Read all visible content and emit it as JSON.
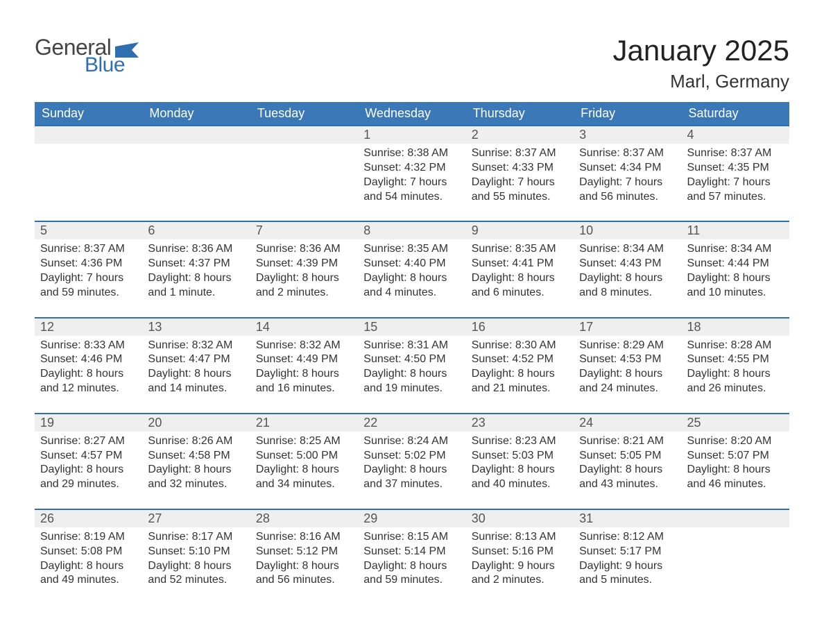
{
  "logo": {
    "text_top": "General",
    "text_bottom": "Blue",
    "color_top": "#444444",
    "color_bottom": "#2f6fb0",
    "flag_color": "#2f6fb0"
  },
  "header": {
    "month_title": "January 2025",
    "location": "Marl, Germany"
  },
  "styling": {
    "header_row_bg": "#3b78b8",
    "header_row_text": "#ffffff",
    "daynum_bg": "#efefef",
    "daynum_border_top": "#2f6fb0",
    "body_text_color": "#333333",
    "page_bg": "#ffffff",
    "title_fontsize": 42,
    "location_fontsize": 26,
    "weekday_fontsize": 18,
    "daynum_fontsize": 18,
    "body_fontsize": 16
  },
  "calendar": {
    "weekdays": [
      "Sunday",
      "Monday",
      "Tuesday",
      "Wednesday",
      "Thursday",
      "Friday",
      "Saturday"
    ],
    "weeks": [
      {
        "days": [
          {
            "num": "",
            "sunrise": "",
            "sunset": "",
            "daylight1": "",
            "daylight2": ""
          },
          {
            "num": "",
            "sunrise": "",
            "sunset": "",
            "daylight1": "",
            "daylight2": ""
          },
          {
            "num": "",
            "sunrise": "",
            "sunset": "",
            "daylight1": "",
            "daylight2": ""
          },
          {
            "num": "1",
            "sunrise": "Sunrise: 8:38 AM",
            "sunset": "Sunset: 4:32 PM",
            "daylight1": "Daylight: 7 hours",
            "daylight2": "and 54 minutes."
          },
          {
            "num": "2",
            "sunrise": "Sunrise: 8:37 AM",
            "sunset": "Sunset: 4:33 PM",
            "daylight1": "Daylight: 7 hours",
            "daylight2": "and 55 minutes."
          },
          {
            "num": "3",
            "sunrise": "Sunrise: 8:37 AM",
            "sunset": "Sunset: 4:34 PM",
            "daylight1": "Daylight: 7 hours",
            "daylight2": "and 56 minutes."
          },
          {
            "num": "4",
            "sunrise": "Sunrise: 8:37 AM",
            "sunset": "Sunset: 4:35 PM",
            "daylight1": "Daylight: 7 hours",
            "daylight2": "and 57 minutes."
          }
        ]
      },
      {
        "days": [
          {
            "num": "5",
            "sunrise": "Sunrise: 8:37 AM",
            "sunset": "Sunset: 4:36 PM",
            "daylight1": "Daylight: 7 hours",
            "daylight2": "and 59 minutes."
          },
          {
            "num": "6",
            "sunrise": "Sunrise: 8:36 AM",
            "sunset": "Sunset: 4:37 PM",
            "daylight1": "Daylight: 8 hours",
            "daylight2": "and 1 minute."
          },
          {
            "num": "7",
            "sunrise": "Sunrise: 8:36 AM",
            "sunset": "Sunset: 4:39 PM",
            "daylight1": "Daylight: 8 hours",
            "daylight2": "and 2 minutes."
          },
          {
            "num": "8",
            "sunrise": "Sunrise: 8:35 AM",
            "sunset": "Sunset: 4:40 PM",
            "daylight1": "Daylight: 8 hours",
            "daylight2": "and 4 minutes."
          },
          {
            "num": "9",
            "sunrise": "Sunrise: 8:35 AM",
            "sunset": "Sunset: 4:41 PM",
            "daylight1": "Daylight: 8 hours",
            "daylight2": "and 6 minutes."
          },
          {
            "num": "10",
            "sunrise": "Sunrise: 8:34 AM",
            "sunset": "Sunset: 4:43 PM",
            "daylight1": "Daylight: 8 hours",
            "daylight2": "and 8 minutes."
          },
          {
            "num": "11",
            "sunrise": "Sunrise: 8:34 AM",
            "sunset": "Sunset: 4:44 PM",
            "daylight1": "Daylight: 8 hours",
            "daylight2": "and 10 minutes."
          }
        ]
      },
      {
        "days": [
          {
            "num": "12",
            "sunrise": "Sunrise: 8:33 AM",
            "sunset": "Sunset: 4:46 PM",
            "daylight1": "Daylight: 8 hours",
            "daylight2": "and 12 minutes."
          },
          {
            "num": "13",
            "sunrise": "Sunrise: 8:32 AM",
            "sunset": "Sunset: 4:47 PM",
            "daylight1": "Daylight: 8 hours",
            "daylight2": "and 14 minutes."
          },
          {
            "num": "14",
            "sunrise": "Sunrise: 8:32 AM",
            "sunset": "Sunset: 4:49 PM",
            "daylight1": "Daylight: 8 hours",
            "daylight2": "and 16 minutes."
          },
          {
            "num": "15",
            "sunrise": "Sunrise: 8:31 AM",
            "sunset": "Sunset: 4:50 PM",
            "daylight1": "Daylight: 8 hours",
            "daylight2": "and 19 minutes."
          },
          {
            "num": "16",
            "sunrise": "Sunrise: 8:30 AM",
            "sunset": "Sunset: 4:52 PM",
            "daylight1": "Daylight: 8 hours",
            "daylight2": "and 21 minutes."
          },
          {
            "num": "17",
            "sunrise": "Sunrise: 8:29 AM",
            "sunset": "Sunset: 4:53 PM",
            "daylight1": "Daylight: 8 hours",
            "daylight2": "and 24 minutes."
          },
          {
            "num": "18",
            "sunrise": "Sunrise: 8:28 AM",
            "sunset": "Sunset: 4:55 PM",
            "daylight1": "Daylight: 8 hours",
            "daylight2": "and 26 minutes."
          }
        ]
      },
      {
        "days": [
          {
            "num": "19",
            "sunrise": "Sunrise: 8:27 AM",
            "sunset": "Sunset: 4:57 PM",
            "daylight1": "Daylight: 8 hours",
            "daylight2": "and 29 minutes."
          },
          {
            "num": "20",
            "sunrise": "Sunrise: 8:26 AM",
            "sunset": "Sunset: 4:58 PM",
            "daylight1": "Daylight: 8 hours",
            "daylight2": "and 32 minutes."
          },
          {
            "num": "21",
            "sunrise": "Sunrise: 8:25 AM",
            "sunset": "Sunset: 5:00 PM",
            "daylight1": "Daylight: 8 hours",
            "daylight2": "and 34 minutes."
          },
          {
            "num": "22",
            "sunrise": "Sunrise: 8:24 AM",
            "sunset": "Sunset: 5:02 PM",
            "daylight1": "Daylight: 8 hours",
            "daylight2": "and 37 minutes."
          },
          {
            "num": "23",
            "sunrise": "Sunrise: 8:23 AM",
            "sunset": "Sunset: 5:03 PM",
            "daylight1": "Daylight: 8 hours",
            "daylight2": "and 40 minutes."
          },
          {
            "num": "24",
            "sunrise": "Sunrise: 8:21 AM",
            "sunset": "Sunset: 5:05 PM",
            "daylight1": "Daylight: 8 hours",
            "daylight2": "and 43 minutes."
          },
          {
            "num": "25",
            "sunrise": "Sunrise: 8:20 AM",
            "sunset": "Sunset: 5:07 PM",
            "daylight1": "Daylight: 8 hours",
            "daylight2": "and 46 minutes."
          }
        ]
      },
      {
        "days": [
          {
            "num": "26",
            "sunrise": "Sunrise: 8:19 AM",
            "sunset": "Sunset: 5:08 PM",
            "daylight1": "Daylight: 8 hours",
            "daylight2": "and 49 minutes."
          },
          {
            "num": "27",
            "sunrise": "Sunrise: 8:17 AM",
            "sunset": "Sunset: 5:10 PM",
            "daylight1": "Daylight: 8 hours",
            "daylight2": "and 52 minutes."
          },
          {
            "num": "28",
            "sunrise": "Sunrise: 8:16 AM",
            "sunset": "Sunset: 5:12 PM",
            "daylight1": "Daylight: 8 hours",
            "daylight2": "and 56 minutes."
          },
          {
            "num": "29",
            "sunrise": "Sunrise: 8:15 AM",
            "sunset": "Sunset: 5:14 PM",
            "daylight1": "Daylight: 8 hours",
            "daylight2": "and 59 minutes."
          },
          {
            "num": "30",
            "sunrise": "Sunrise: 8:13 AM",
            "sunset": "Sunset: 5:16 PM",
            "daylight1": "Daylight: 9 hours",
            "daylight2": "and 2 minutes."
          },
          {
            "num": "31",
            "sunrise": "Sunrise: 8:12 AM",
            "sunset": "Sunset: 5:17 PM",
            "daylight1": "Daylight: 9 hours",
            "daylight2": "and 5 minutes."
          },
          {
            "num": "",
            "sunrise": "",
            "sunset": "",
            "daylight1": "",
            "daylight2": ""
          }
        ]
      }
    ]
  }
}
